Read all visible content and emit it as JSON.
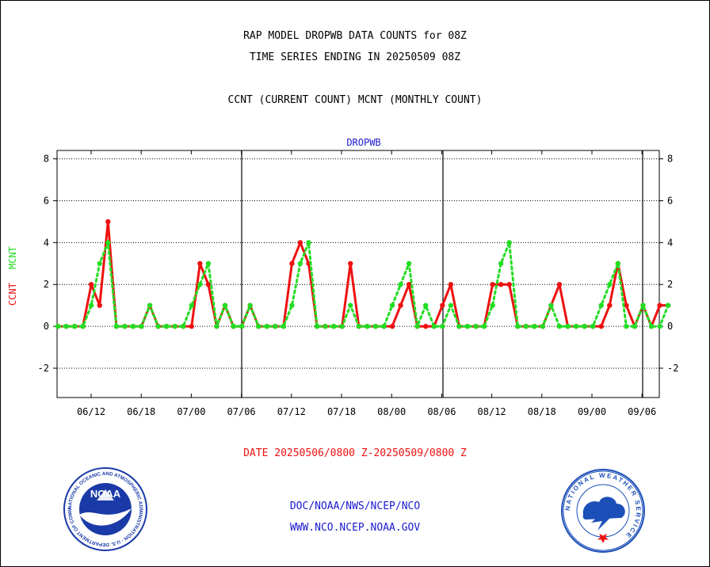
{
  "header": {
    "line1": "RAP MODEL DROPWB DATA COUNTS for 08Z",
    "line2": "TIME SERIES ENDING IN 20250509 08Z",
    "line3": "CCNT (CURRENT COUNT) MCNT (MONTHLY COUNT)"
  },
  "date_range": "DATE 20250506/0800 Z-20250509/0800 Z",
  "footer": {
    "org_path": "DOC/NOAA/NWS/NCEP/NCO",
    "website": "WWW.NCO.NCEP.NOAA.GOV"
  },
  "logos": {
    "noaa_text": "NOAA",
    "noaa_ring_text": "NATIONAL OCEANIC AND ATMOSPHERIC ADMINISTRATION · U.S. DEPARTMENT OF COMMERCE ·",
    "nws_ring_text": "NATIONAL WEATHER SERVICE"
  },
  "colors": {
    "ccnt": "#ee1111",
    "mcnt": "#22dd22",
    "title_blue": "#1a1ad0",
    "noaa_blue": "#1a3aa8",
    "nws_blue": "#1c4fb8"
  },
  "chart_data": {
    "type": "line",
    "title": "DROPWB",
    "ylabel_ccnt": "CCNT",
    "ylabel_mcnt": "MCNT",
    "x_tick_labels": [
      "06/12",
      "06/18",
      "07/00",
      "07/06",
      "07/12",
      "07/18",
      "08/00",
      "08/06",
      "08/12",
      "08/18",
      "09/00",
      "09/06"
    ],
    "y_ticks": [
      -2,
      0,
      2,
      4,
      6,
      8
    ],
    "ylim": [
      -3.4,
      8.4
    ],
    "grid": "dotted-horizontal",
    "series": [
      {
        "name": "CCNT",
        "color": "#ee1111",
        "style": "solid",
        "values": [
          0,
          0,
          0,
          0,
          2,
          1,
          5,
          0,
          0,
          0,
          0,
          1,
          0,
          0,
          0,
          0,
          0,
          3,
          2,
          0,
          1,
          0,
          0,
          1,
          0,
          0,
          0,
          0,
          3,
          4,
          3,
          0,
          0,
          0,
          0,
          3,
          0,
          0,
          0,
          0,
          0,
          1,
          2,
          0,
          0,
          0,
          1,
          2,
          0,
          0,
          0,
          0,
          2,
          2,
          2,
          0,
          0,
          0,
          0,
          1,
          2,
          0,
          0,
          0,
          0,
          0,
          1,
          3,
          1,
          0,
          1,
          0,
          1,
          1
        ]
      },
      {
        "name": "MCNT",
        "color": "#22dd22",
        "style": "dotted",
        "values": [
          0,
          0,
          0,
          0,
          1,
          3,
          4,
          0,
          0,
          0,
          0,
          1,
          0,
          0,
          0,
          0,
          1,
          2,
          3,
          0,
          1,
          0,
          0,
          1,
          0,
          0,
          0,
          0,
          1,
          3,
          4,
          0,
          0,
          0,
          0,
          1,
          0,
          0,
          0,
          0,
          1,
          2,
          3,
          0,
          1,
          0,
          0,
          1,
          0,
          0,
          0,
          0,
          1,
          3,
          4,
          0,
          0,
          0,
          0,
          1,
          0,
          0,
          0,
          0,
          0,
          1,
          2,
          3,
          0,
          0,
          1,
          0,
          0,
          1
        ]
      }
    ]
  }
}
